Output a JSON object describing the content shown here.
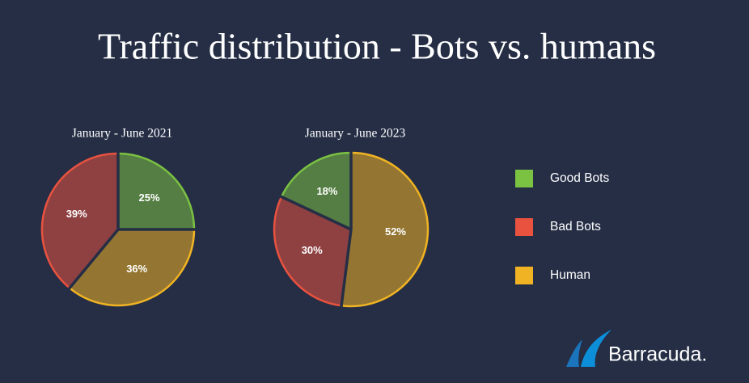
{
  "title": "Traffic distribution - Bots vs. humans",
  "brand": "Barracuda.",
  "chart_data": [
    {
      "type": "pie",
      "title": "January - June 2021",
      "categories": [
        "Good Bots",
        "Human",
        "Bad Bots"
      ],
      "values": [
        25,
        36,
        39
      ],
      "value_labels": [
        "25%",
        "36%",
        "39%"
      ],
      "colors": [
        "#7bc142",
        "#f0b323",
        "#e8523f"
      ]
    },
    {
      "type": "pie",
      "title": "January - June 2023",
      "categories": [
        "Human",
        "Bad Bots",
        "Good Bots"
      ],
      "values": [
        52,
        30,
        18
      ],
      "value_labels": [
        "52%",
        "30%",
        "18%"
      ],
      "colors": [
        "#f0b323",
        "#e8523f",
        "#7bc142"
      ]
    }
  ]
}
